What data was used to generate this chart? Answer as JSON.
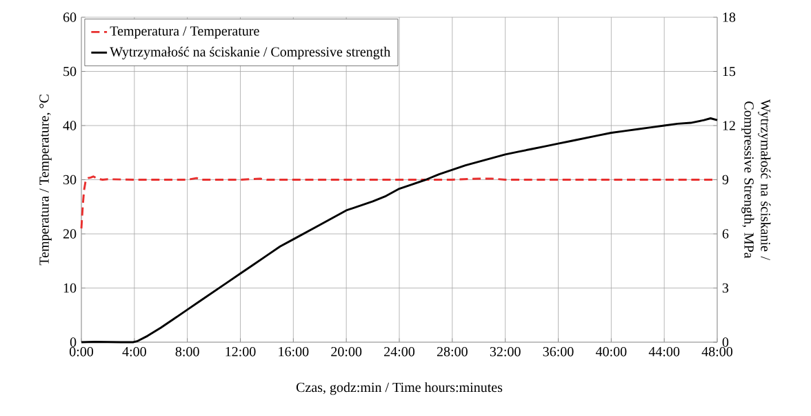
{
  "chart_data": {
    "type": "line",
    "xlabel": "Czas, godz:min / Time hours:minutes",
    "ylabel": "Temperatura / Temperature, °C",
    "y2label": "Wytrzymałość na ściskanie / Compressive Strength, MPa",
    "xlim": [
      0,
      48
    ],
    "xticks": [
      {
        "value": 0,
        "label": "0:00"
      },
      {
        "value": 4,
        "label": "4:00"
      },
      {
        "value": 8,
        "label": "8:00"
      },
      {
        "value": 12,
        "label": "12:00"
      },
      {
        "value": 16,
        "label": "16:00"
      },
      {
        "value": 20,
        "label": "20:00"
      },
      {
        "value": 24,
        "label": "24:00"
      },
      {
        "value": 28,
        "label": "28:00"
      },
      {
        "value": 32,
        "label": "32:00"
      },
      {
        "value": 36,
        "label": "36:00"
      },
      {
        "value": 40,
        "label": "40:00"
      },
      {
        "value": 44,
        "label": "44:00"
      },
      {
        "value": 48,
        "label": "48:00"
      }
    ],
    "ylim": [
      0,
      60
    ],
    "yticks": [
      0,
      10,
      20,
      30,
      40,
      50,
      60
    ],
    "y2lim": [
      0,
      18
    ],
    "y2ticks": [
      0,
      3,
      6,
      9,
      12,
      15,
      18
    ],
    "grid": true,
    "legend": "top left",
    "marker": "none",
    "series": [
      {
        "name": "Temperatura / Temperature",
        "color": "#e8302f",
        "line_style": "dashed",
        "axis": "y",
        "x": [
          0,
          0.1,
          0.2,
          0.3,
          0.4,
          0.5,
          0.7,
          0.9,
          1.2,
          1.6,
          2,
          4,
          8,
          8.7,
          9,
          12,
          13.5,
          14,
          16,
          20,
          24,
          28,
          30,
          31,
          32,
          36,
          40,
          44,
          48
        ],
        "values": [
          21,
          25,
          28,
          29.5,
          30.2,
          30.3,
          30.4,
          30.6,
          30.2,
          30,
          30.1,
          30,
          30,
          30.3,
          30,
          30,
          30.2,
          30,
          30,
          30,
          30,
          30,
          30.2,
          30.2,
          30,
          30,
          30,
          30,
          30
        ]
      },
      {
        "name": "Wytrzymałość na ściskanie / Compressive strength",
        "color": "#000000",
        "line_style": "solid",
        "axis": "y2",
        "x": [
          0,
          1,
          2,
          3,
          3.5,
          3.9,
          4.2,
          5,
          6,
          7,
          8,
          9,
          10,
          11,
          12,
          13,
          14,
          15,
          16,
          17,
          18,
          19,
          20,
          21,
          22,
          23,
          24,
          25,
          26,
          27,
          28,
          29,
          30,
          31,
          32,
          33,
          34,
          35,
          36,
          37,
          38,
          39,
          40,
          41,
          42,
          43,
          44,
          45,
          46,
          47,
          47.5,
          48
        ],
        "values": [
          0,
          0.02,
          0.01,
          0,
          0,
          0,
          0.05,
          0.35,
          0.8,
          1.3,
          1.8,
          2.3,
          2.8,
          3.3,
          3.8,
          4.3,
          4.8,
          5.3,
          5.7,
          6.1,
          6.5,
          6.9,
          7.3,
          7.55,
          7.8,
          8.1,
          8.5,
          8.75,
          9.0,
          9.3,
          9.55,
          9.8,
          10.0,
          10.2,
          10.4,
          10.55,
          10.7,
          10.85,
          11.0,
          11.15,
          11.3,
          11.45,
          11.6,
          11.7,
          11.8,
          11.9,
          12.0,
          12.1,
          12.15,
          12.3,
          12.4,
          12.3
        ]
      }
    ]
  }
}
